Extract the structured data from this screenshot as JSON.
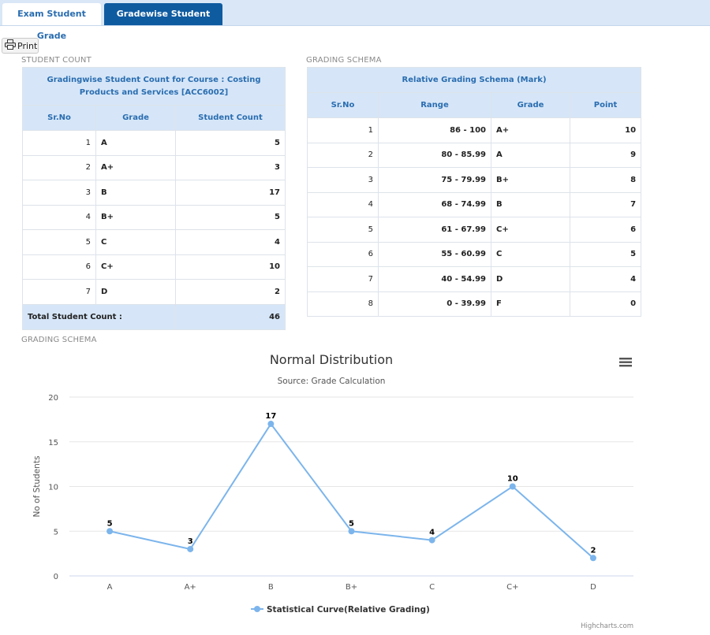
{
  "tabs": [
    {
      "label": "Exam Student Grade"
    },
    {
      "label": "Gradewise Student Count"
    }
  ],
  "print_label": "Print",
  "student_count": {
    "section_label": "STUDENT COUNT",
    "caption": "Gradingwise Student Count for Course : Costing Products and Services [ACC6002]",
    "headers": [
      "Sr.No",
      "Grade",
      "Student Count"
    ],
    "rows": [
      {
        "sr": "1",
        "grade": "A",
        "count": "5"
      },
      {
        "sr": "2",
        "grade": "A+",
        "count": "3"
      },
      {
        "sr": "3",
        "grade": "B",
        "count": "17"
      },
      {
        "sr": "4",
        "grade": "B+",
        "count": "5"
      },
      {
        "sr": "5",
        "grade": "C",
        "count": "4"
      },
      {
        "sr": "6",
        "grade": "C+",
        "count": "10"
      },
      {
        "sr": "7",
        "grade": "D",
        "count": "2"
      }
    ],
    "total_label": "Total Student Count :",
    "total_value": "46"
  },
  "grading_schema": {
    "section_label": "GRADING SCHEMA",
    "caption": "Relative Grading Schema (Mark)",
    "headers": [
      "Sr.No",
      "Range",
      "Grade",
      "Point"
    ],
    "rows": [
      {
        "sr": "1",
        "range": "86 - 100",
        "grade": "A+",
        "point": "10"
      },
      {
        "sr": "2",
        "range": "80 - 85.99",
        "grade": "A",
        "point": "9"
      },
      {
        "sr": "3",
        "range": "75 - 79.99",
        "grade": "B+",
        "point": "8"
      },
      {
        "sr": "4",
        "range": "68 - 74.99",
        "grade": "B",
        "point": "7"
      },
      {
        "sr": "5",
        "range": "61 - 67.99",
        "grade": "C+",
        "point": "6"
      },
      {
        "sr": "6",
        "range": "55 - 60.99",
        "grade": "C",
        "point": "5"
      },
      {
        "sr": "7",
        "range": "40 - 54.99",
        "grade": "D",
        "point": "4"
      },
      {
        "sr": "8",
        "range": "0 - 39.99",
        "grade": "F",
        "point": "0"
      }
    ]
  },
  "chart_section_label": "GRADING SCHEMA",
  "chart_credit": "Highcharts.com",
  "colors": {
    "series": "#7cb5ec",
    "active_tab": "#0f5ba0",
    "header_bg": "#d6e6f8",
    "header_text": "#2a6db0"
  },
  "icons": {
    "print": "printer-icon",
    "menu": "hamburger-menu-icon"
  },
  "chart_data": {
    "type": "line",
    "title": "Normal Distribution",
    "subtitle": "Source: Grade Calculation",
    "xlabel": "",
    "ylabel": "No of Students",
    "categories": [
      "A",
      "A+",
      "B",
      "B+",
      "C",
      "C+",
      "D"
    ],
    "ylim": [
      0,
      20
    ],
    "yticks": [
      0,
      5,
      10,
      15,
      20
    ],
    "grid": true,
    "legend_position": "bottom-center",
    "series": [
      {
        "name": "Statistical Curve(Relative Grading)",
        "values": [
          5,
          3,
          17,
          5,
          4,
          10,
          2
        ],
        "data_labels": true
      }
    ]
  }
}
